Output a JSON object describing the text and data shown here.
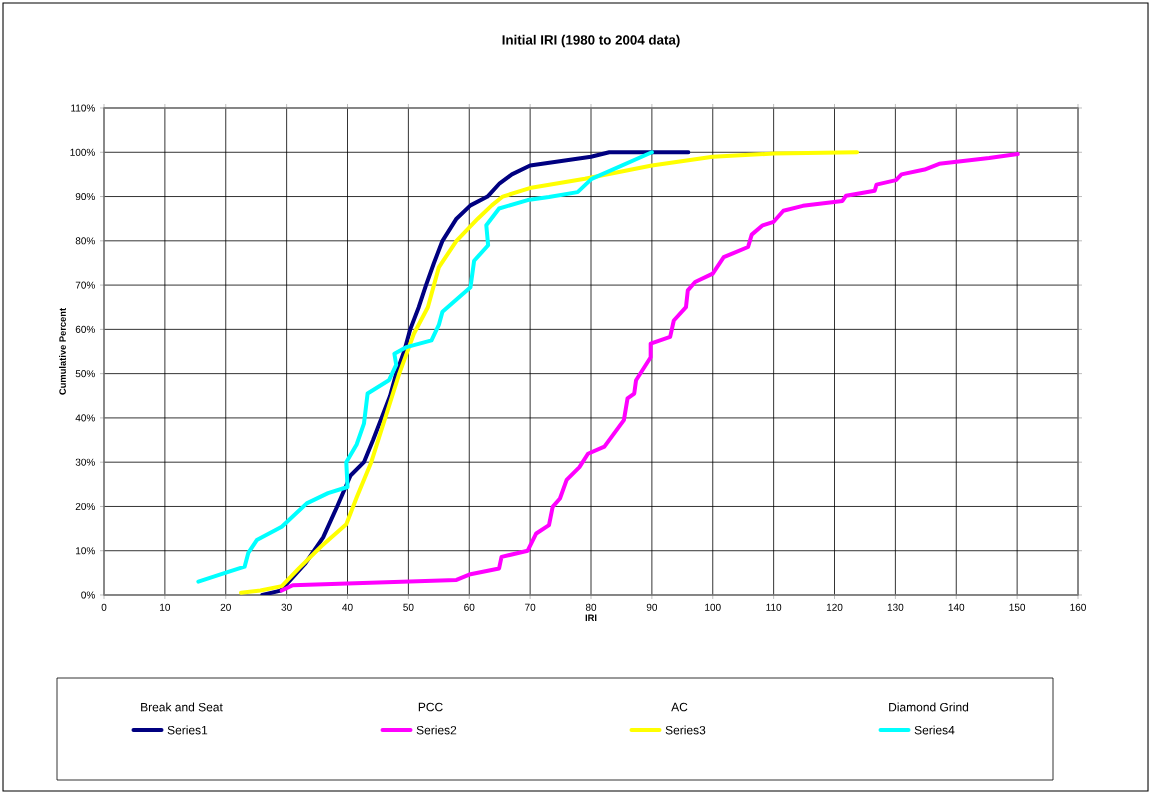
{
  "chart_data": {
    "type": "line",
    "title": "Initial IRI (1980 to 2004 data)",
    "xlabel": "IRI",
    "ylabel": "Cumulative Percent",
    "xlim": [
      0,
      160
    ],
    "xticks": [
      0,
      10,
      20,
      30,
      40,
      50,
      60,
      70,
      80,
      90,
      100,
      110,
      120,
      130,
      140,
      150,
      160
    ],
    "ylim": [
      0,
      110
    ],
    "yticks": [
      {
        "value": 0,
        "label": "0%"
      },
      {
        "value": 10,
        "label": "10%"
      },
      {
        "value": 20,
        "label": "20%"
      },
      {
        "value": 30,
        "label": "30%"
      },
      {
        "value": 40,
        "label": "40%"
      },
      {
        "value": 50,
        "label": "50%"
      },
      {
        "value": 60,
        "label": "60%"
      },
      {
        "value": 70,
        "label": "70%"
      },
      {
        "value": 80,
        "label": "80%"
      },
      {
        "value": 90,
        "label": "90%"
      },
      {
        "value": 100,
        "label": "100%"
      },
      {
        "value": 110,
        "label": "110%"
      }
    ],
    "grid": true,
    "legend": "bottom",
    "marker": "none",
    "line_style": "solid",
    "annotations": [
      "Break and Seat",
      "PCC",
      "AC",
      "Diamond Grind"
    ],
    "series": [
      {
        "name": "Series1",
        "color": "#000080",
        "x": [
          26,
          29,
          31,
          33,
          34.5,
          36,
          38.3,
          40.5,
          42.7,
          44.2,
          45.6,
          47,
          48,
          49.3,
          50.3,
          51.7,
          52.9,
          54.2,
          55.6,
          57.9,
          60.2,
          63,
          65,
          67,
          70,
          75,
          80,
          83,
          96
        ],
        "values": [
          0,
          1,
          4,
          7,
          10,
          13,
          20,
          27,
          30,
          35,
          40,
          45,
          50,
          55,
          60,
          65,
          70,
          75,
          80,
          85,
          88,
          90,
          93,
          95,
          97,
          98,
          99,
          100,
          100
        ]
      },
      {
        "name": "Series2",
        "color": "#ff00ff",
        "x": [
          29.2,
          31,
          57.9,
          60.2,
          64.9,
          65.3,
          69.6,
          71,
          73.1,
          73.7,
          74.9,
          76,
          78.1,
          79.5,
          82.2,
          85.4,
          86,
          87.1,
          87.4,
          89.8,
          89.8,
          93,
          93.6,
          95.6,
          95.9,
          97.1,
          100,
          101.8,
          105.8,
          106.4,
          108.2,
          110,
          111.6,
          114.8,
          121.3,
          121.9,
          126.6,
          126.9,
          130.1,
          131,
          134.8,
          137.2,
          145.4,
          150.1
        ],
        "values": [
          1,
          2.2,
          3.4,
          4.7,
          6,
          8.6,
          10,
          13.9,
          15.8,
          19.9,
          21.8,
          26,
          28.9,
          31.9,
          33.5,
          39.5,
          44.4,
          45.5,
          48.5,
          53.7,
          56.8,
          58.3,
          62,
          65,
          68.8,
          70.7,
          72.6,
          76.3,
          78.6,
          81.4,
          83.5,
          84.3,
          86.8,
          87.9,
          89,
          90.2,
          91.3,
          92.7,
          93.7,
          95,
          96.1,
          97.4,
          98.7,
          99.6
        ]
      },
      {
        "name": "Series3",
        "color": "#ffff00",
        "x": [
          22.5,
          25.7,
          29.2,
          32,
          35.7,
          39.8,
          41.5,
          43.9,
          46.2,
          48.5,
          50.9,
          53.2,
          55,
          57.9,
          61.4,
          63.7,
          65.5,
          70.2,
          79,
          90,
          100,
          110,
          123.7
        ],
        "values": [
          0.5,
          1,
          2,
          6,
          11,
          16,
          22,
          30,
          40,
          50,
          59,
          65,
          74,
          80,
          85,
          88,
          90,
          92,
          94,
          97,
          99,
          99.7,
          100
        ]
      },
      {
        "name": "Series4",
        "color": "#00ffff",
        "x": [
          15.5,
          19.9,
          23.1,
          23.7,
          25.1,
          29.2,
          33.3,
          36.8,
          40,
          39.8,
          41.5,
          42.7,
          43.3,
          46.8,
          48,
          47.7,
          49.7,
          53.8,
          55,
          55.6,
          60.2,
          60.8,
          63.1,
          62.8,
          64.9,
          69.6,
          73.1,
          77.8,
          80.1,
          90
        ],
        "values": [
          3,
          5,
          6.4,
          9.5,
          12.4,
          15.4,
          20.7,
          23,
          24.4,
          30,
          34,
          38.7,
          45.5,
          48.5,
          52,
          54.5,
          56,
          57.5,
          61,
          64,
          69.5,
          75.5,
          79,
          83.5,
          87.3,
          89.2,
          89.9,
          91,
          94,
          100
        ]
      }
    ]
  }
}
